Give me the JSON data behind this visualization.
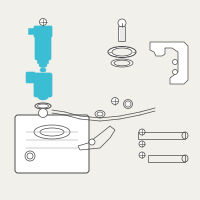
{
  "bg_color": "#f2f0ea",
  "highlight_color": "#3bbdd4",
  "line_color": "#4a4a4a",
  "light_line": "#999999",
  "fig_width": 2.0,
  "fig_height": 2.0,
  "dpi": 100,
  "lw_main": 0.7,
  "lw_thin": 0.5,
  "lw_thick": 1.0
}
